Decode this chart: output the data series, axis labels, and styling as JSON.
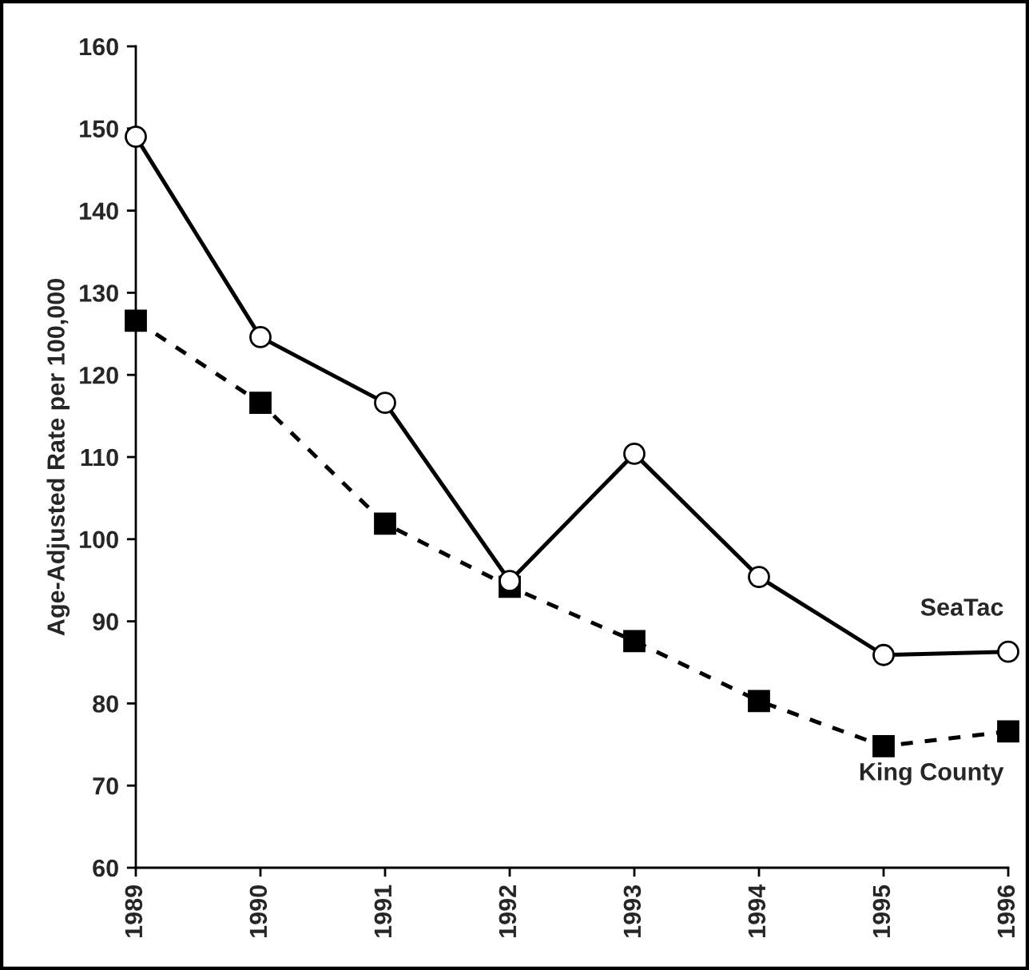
{
  "chart_data": {
    "type": "line",
    "ylabel": "Age-Adjusted Rate per 100,000",
    "categories": [
      "1989",
      "1990",
      "1991",
      "1992",
      "1993",
      "1994",
      "1995",
      "1996"
    ],
    "series": [
      {
        "name": "SeaTac",
        "color": "#000000",
        "values": [
          149.0,
          124.6,
          116.6,
          94.9,
          110.4,
          95.4,
          85.9,
          86.3
        ],
        "marker": "circle",
        "line_style": "solid"
      },
      {
        "name": "King County",
        "color": "#000000",
        "values": [
          126.6,
          116.6,
          101.9,
          94.2,
          87.6,
          80.3,
          74.8,
          76.6
        ],
        "marker": "square",
        "line_style": "dashed"
      }
    ],
    "ylim": [
      60,
      160
    ],
    "yticks": [
      60,
      70,
      80,
      90,
      100,
      110,
      120,
      130,
      140,
      150,
      160
    ],
    "grid": false,
    "legend": false
  }
}
